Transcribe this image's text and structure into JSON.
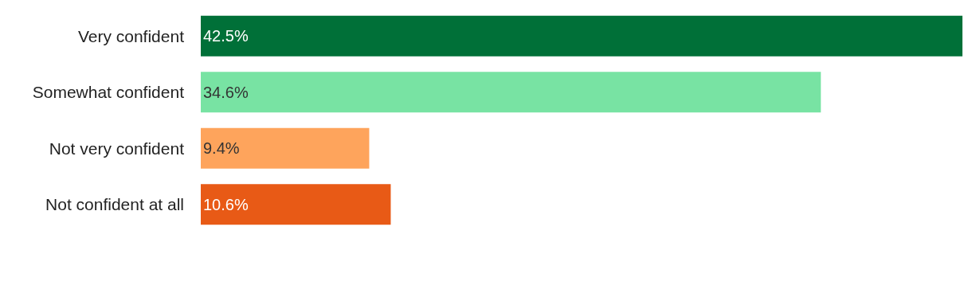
{
  "chart_data": {
    "type": "bar",
    "orientation": "horizontal",
    "categories": [
      "Very confident",
      "Somewhat confident",
      "Not very confident",
      "Not confident at all"
    ],
    "values": [
      42.5,
      34.6,
      9.4,
      10.6
    ],
    "colors": [
      "#007038",
      "#78e3a3",
      "#fea45c",
      "#e85a16"
    ],
    "value_labels": [
      "42.5%",
      "34.6%",
      "9.4%",
      "10.6%"
    ]
  }
}
